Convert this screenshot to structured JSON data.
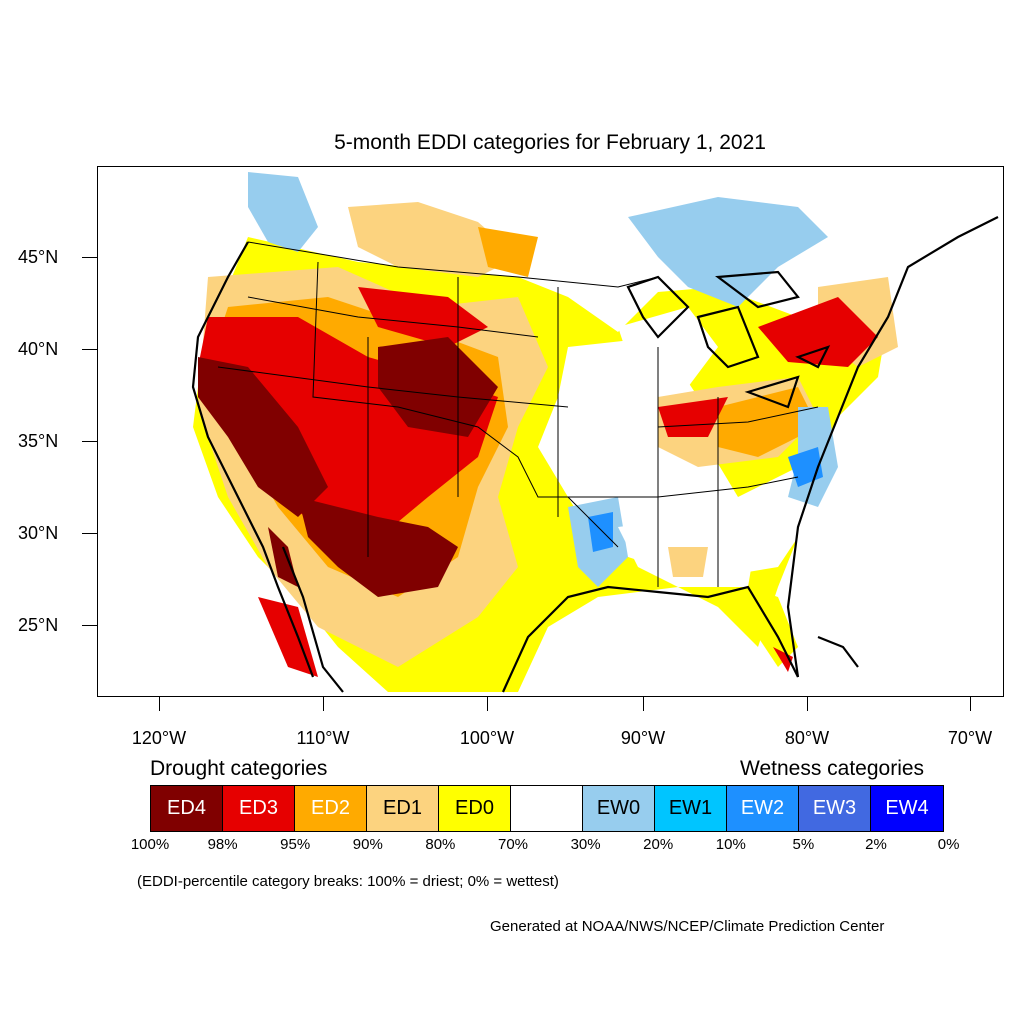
{
  "title": "5-month EDDI categories for February 1, 2021",
  "latitude_labels": [
    "45°N",
    "40°N",
    "35°N",
    "30°N",
    "25°N"
  ],
  "longitude_labels": [
    "120°W",
    "110°W",
    "100°W",
    "90°W",
    "80°W",
    "70°W"
  ],
  "drought_title": "Drought categories",
  "wetness_title": "Wetness categories",
  "categories": [
    {
      "label": "ED4",
      "color": "#800000",
      "text_color": "#ffffff"
    },
    {
      "label": "ED3",
      "color": "#e60000",
      "text_color": "#ffffff"
    },
    {
      "label": "ED2",
      "color": "#ffaa00",
      "text_color": "#ffffff"
    },
    {
      "label": "ED1",
      "color": "#fcd37f",
      "text_color": "#000000"
    },
    {
      "label": "ED0",
      "color": "#ffff00",
      "text_color": "#000000"
    },
    {
      "label": "",
      "color": "#ffffff",
      "text_color": "#000000"
    },
    {
      "label": "EW0",
      "color": "#97cdee",
      "text_color": "#000000"
    },
    {
      "label": "EW1",
      "color": "#00c5ff",
      "text_color": "#000000"
    },
    {
      "label": "EW2",
      "color": "#1e90ff",
      "text_color": "#ffffff"
    },
    {
      "label": "EW3",
      "color": "#4169e1",
      "text_color": "#ffffff"
    },
    {
      "label": "EW4",
      "color": "#0000ff",
      "text_color": "#ffffff"
    }
  ],
  "percentiles": [
    "100%",
    "98%",
    "95%",
    "90%",
    "80%",
    "70%",
    "30%",
    "20%",
    "10%",
    "5%",
    "2%",
    "0%"
  ],
  "note": "(EDDI-percentile category breaks: 100% = driest; 0% = wettest)",
  "credit": "Generated at NOAA/NWS/NCEP/Climate Prediction Center"
}
